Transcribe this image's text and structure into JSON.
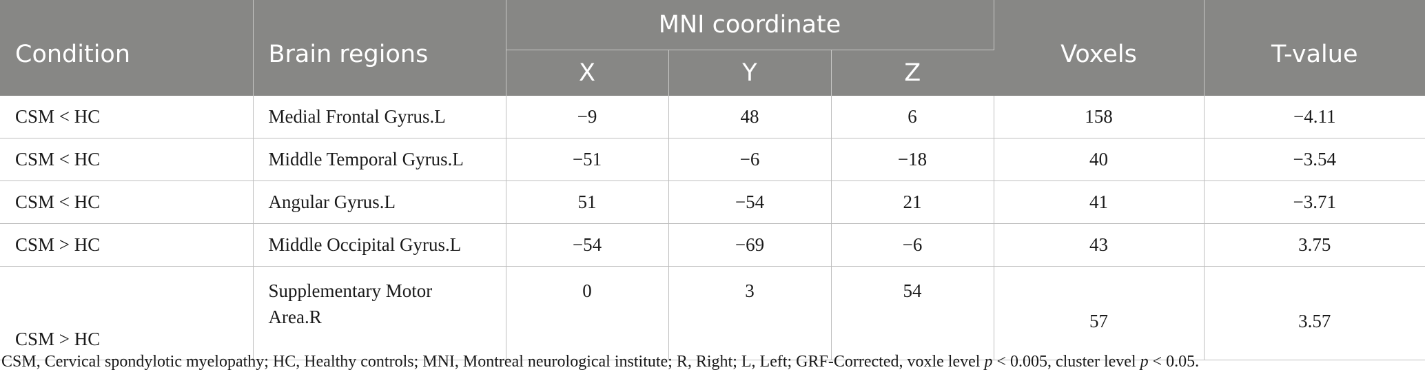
{
  "table": {
    "headers": {
      "condition": "Condition",
      "brain_regions": "Brain regions",
      "mni": "MNI coordinate",
      "x": "X",
      "y": "Y",
      "z": "Z",
      "voxels": "Voxels",
      "t_value": "T-value"
    },
    "rows": [
      {
        "condition": "CSM < HC",
        "region": "Medial Frontal Gyrus.L",
        "x": "−9",
        "y": "48",
        "z": "6",
        "voxels": "158",
        "t": "−4.11"
      },
      {
        "condition": "CSM < HC",
        "region": "Middle Temporal Gyrus.L",
        "x": "−51",
        "y": "−6",
        "z": "−18",
        "voxels": "40",
        "t": "−3.54"
      },
      {
        "condition": "CSM < HC",
        "region": "Angular Gyrus.L",
        "x": "51",
        "y": "−54",
        "z": "21",
        "voxels": "41",
        "t": "−3.71"
      },
      {
        "condition": "CSM > HC",
        "region": "Middle Occipital Gyrus.L",
        "x": "−54",
        "y": "−69",
        "z": "−6",
        "voxels": "43",
        "t": "3.75"
      },
      {
        "condition": "CSM > HC",
        "region_line1": "Supplementary Motor",
        "region_line2": "Area.R",
        "x": "0",
        "y": "3",
        "z": "54",
        "voxels": "57",
        "t": "3.57"
      }
    ]
  },
  "footnote": {
    "text_main": "CSM, Cervical spondylotic myelopathy; HC, Healthy controls; MNI, Montreal neurological institute; R, Right; L, Left; GRF-Corrected, voxle level ",
    "p1": "p",
    "mid": " < 0.005, cluster level ",
    "p2": "p",
    "end": " < 0.05."
  }
}
